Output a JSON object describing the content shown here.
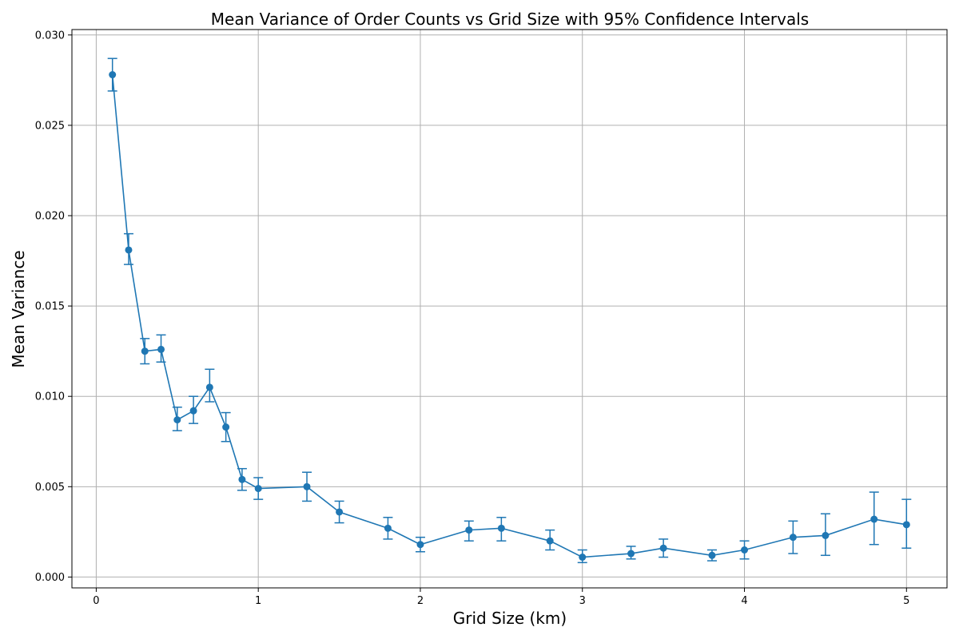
{
  "chart_data": {
    "type": "line",
    "title": "Mean Variance of Order Counts vs Grid Size with 95% Confidence Intervals",
    "xlabel": "Grid Size (km)",
    "ylabel": "Mean Variance",
    "xlim": [
      -0.15,
      5.25
    ],
    "ylim": [
      -0.0006,
      0.0303
    ],
    "xticks": [
      0,
      1,
      2,
      3,
      4,
      5
    ],
    "xtick_labels": [
      "0",
      "1",
      "2",
      "3",
      "4",
      "5"
    ],
    "yticks": [
      0.0,
      0.005,
      0.01,
      0.015,
      0.02,
      0.025,
      0.03
    ],
    "ytick_labels": [
      "0.000",
      "0.005",
      "0.010",
      "0.015",
      "0.020",
      "0.025",
      "0.030"
    ],
    "grid": true,
    "series_color": "#1f77b4",
    "series": [
      {
        "x": [
          0.1,
          0.2,
          0.3,
          0.4,
          0.5,
          0.6,
          0.7,
          0.8,
          0.9,
          1.0,
          1.3,
          1.5,
          1.8,
          2.0,
          2.3,
          2.5,
          2.8,
          3.0,
          3.3,
          3.5,
          3.8,
          4.0,
          4.3,
          4.5,
          4.8,
          5.0
        ],
        "y": [
          0.0278,
          0.0181,
          0.0125,
          0.0126,
          0.0087,
          0.0092,
          0.0105,
          0.0083,
          0.0054,
          0.0049,
          0.005,
          0.0036,
          0.0027,
          0.0018,
          0.0026,
          0.0027,
          0.002,
          0.0011,
          0.0013,
          0.0016,
          0.0012,
          0.0015,
          0.0022,
          0.0023,
          0.0032,
          0.0029
        ],
        "ci_low": [
          0.0269,
          0.0173,
          0.0118,
          0.0119,
          0.0081,
          0.0085,
          0.0097,
          0.0075,
          0.0048,
          0.0043,
          0.0042,
          0.003,
          0.0021,
          0.0014,
          0.002,
          0.002,
          0.0015,
          0.0008,
          0.001,
          0.0011,
          0.0009,
          0.001,
          0.0013,
          0.0012,
          0.0018,
          0.0016
        ],
        "ci_high": [
          0.0287,
          0.019,
          0.0132,
          0.0134,
          0.0094,
          0.01,
          0.0115,
          0.0091,
          0.006,
          0.0055,
          0.0058,
          0.0042,
          0.0033,
          0.0022,
          0.0031,
          0.0033,
          0.0026,
          0.0015,
          0.0017,
          0.0021,
          0.0015,
          0.002,
          0.0031,
          0.0035,
          0.0047,
          0.0043
        ]
      }
    ]
  }
}
